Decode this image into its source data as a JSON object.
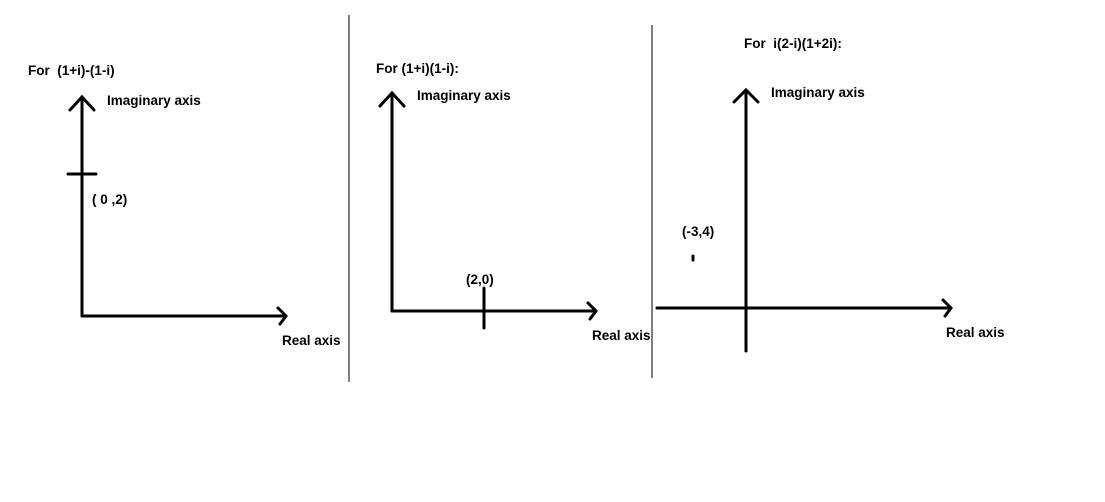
{
  "panels": [
    {
      "title": "For  (1+i)-(1-i)",
      "y_axis_label": "Imaginary axis",
      "x_axis_label": "Real axis",
      "point_label": "( 0 ,2)",
      "point": {
        "re": 0,
        "im": 2
      }
    },
    {
      "title": "For (1+i)(1-i):",
      "y_axis_label": "Imaginary axis",
      "x_axis_label": "Real axis",
      "point_label": "(2,0)",
      "point": {
        "re": 2,
        "im": 0
      }
    },
    {
      "title": "For  i(2-i)(1+2i):",
      "y_axis_label": "Imaginary axis",
      "x_axis_label": "Real axis",
      "point_label": "(-3,4)",
      "point": {
        "re": -3,
        "im": 4
      }
    }
  ]
}
